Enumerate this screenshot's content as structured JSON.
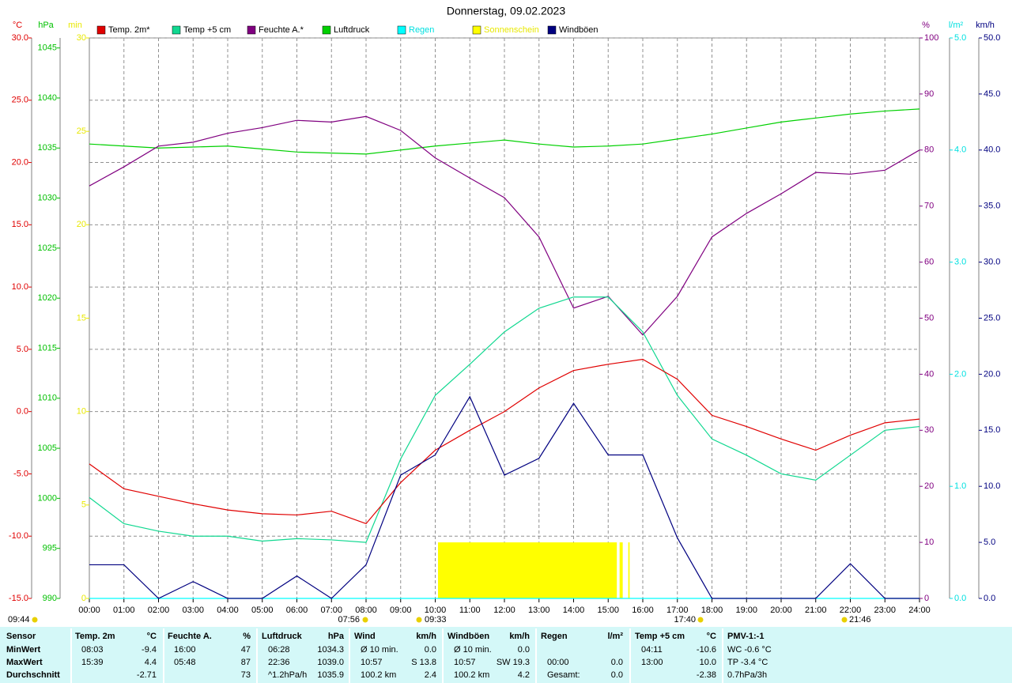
{
  "chart_data": {
    "type": "line",
    "title": "Donnerstag, 09.02.2023",
    "x": [
      0,
      1,
      2,
      3,
      4,
      5,
      6,
      7,
      8,
      9,
      10,
      11,
      12,
      13,
      14,
      15,
      16,
      17,
      18,
      19,
      20,
      21,
      22,
      23,
      24
    ],
    "xlim": [
      0,
      24
    ],
    "xticks": [
      {
        "value": 0,
        "label": "00:00"
      },
      {
        "value": 1,
        "label": "01:00"
      },
      {
        "value": 2,
        "label": "02:00"
      },
      {
        "value": 3,
        "label": "03:00"
      },
      {
        "value": 4,
        "label": "04:00"
      },
      {
        "value": 5,
        "label": "05:00"
      },
      {
        "value": 6,
        "label": "06:00"
      },
      {
        "value": 7,
        "label": "07:00"
      },
      {
        "value": 8,
        "label": "08:00"
      },
      {
        "value": 9,
        "label": "09:00"
      },
      {
        "value": 10,
        "label": "10:00"
      },
      {
        "value": 11,
        "label": "11:00"
      },
      {
        "value": 12,
        "label": "12:00"
      },
      {
        "value": 13,
        "label": "13:00"
      },
      {
        "value": 14,
        "label": "14:00"
      },
      {
        "value": 15,
        "label": "15:00"
      },
      {
        "value": 16,
        "label": "16:00"
      },
      {
        "value": 17,
        "label": "17:00"
      },
      {
        "value": 18,
        "label": "18:00"
      },
      {
        "value": 19,
        "label": "19:00"
      },
      {
        "value": 20,
        "label": "20:00"
      },
      {
        "value": 21,
        "label": "21:00"
      },
      {
        "value": 22,
        "label": "22:00"
      },
      {
        "value": 23,
        "label": "23:00"
      },
      {
        "value": 24,
        "label": "24:00"
      }
    ],
    "grid": true,
    "axes": [
      {
        "id": "c",
        "title": "°C",
        "color": "#e00000",
        "side": "left",
        "lim": [
          -15,
          30
        ],
        "grid": true,
        "ticks": [
          {
            "value": -15,
            "label": "-15.0"
          },
          {
            "value": -10,
            "label": "-10.0"
          },
          {
            "value": -5,
            "label": "-5.0"
          },
          {
            "value": 0,
            "label": "0.0"
          },
          {
            "value": 5,
            "label": "5.0"
          },
          {
            "value": 10,
            "label": "10.0"
          },
          {
            "value": 15,
            "label": "15.0"
          },
          {
            "value": 20,
            "label": "20.0"
          },
          {
            "value": 25,
            "label": "25.0"
          },
          {
            "value": 30,
            "label": "30.0"
          }
        ]
      },
      {
        "id": "hpa",
        "title": "hPa",
        "color": "#00c000",
        "side": "left",
        "lim": [
          990,
          1046
        ],
        "grid": false,
        "ticks": [
          990,
          995,
          1000,
          1005,
          1010,
          1015,
          1020,
          1025,
          1030,
          1035,
          1040,
          1045
        ]
      },
      {
        "id": "min",
        "title": "min",
        "color": "#e8e800",
        "side": "left",
        "lim": [
          0,
          30
        ],
        "grid": false,
        "ticks": [
          0,
          5,
          10,
          15,
          20,
          25,
          30
        ]
      },
      {
        "id": "pct",
        "title": "%",
        "color": "#800080",
        "side": "right",
        "lim": [
          0,
          100
        ],
        "grid": false,
        "ticks": [
          0,
          10,
          20,
          30,
          40,
          50,
          60,
          70,
          80,
          90,
          100
        ]
      },
      {
        "id": "rain",
        "title": "l/m²",
        "color": "#00e0e0",
        "side": "right",
        "lim": [
          0,
          5
        ],
        "grid": false,
        "ticks": [
          {
            "value": 0,
            "label": "0.0"
          },
          {
            "value": 1,
            "label": "1.0"
          },
          {
            "value": 2,
            "label": "2.0"
          },
          {
            "value": 3,
            "label": "3.0"
          },
          {
            "value": 4,
            "label": "4.0"
          },
          {
            "value": 5,
            "label": "5.0"
          }
        ]
      },
      {
        "id": "kmh",
        "title": "km/h",
        "color": "#000080",
        "side": "right",
        "lim": [
          0,
          50
        ],
        "grid": false,
        "ticks": [
          {
            "value": 0,
            "label": "0.0"
          },
          {
            "value": 5,
            "label": "5.0"
          },
          {
            "value": 10,
            "label": "10.0"
          },
          {
            "value": 15,
            "label": "15.0"
          },
          {
            "value": 20,
            "label": "20.0"
          },
          {
            "value": 25,
            "label": "25.0"
          },
          {
            "value": 30,
            "label": "30.0"
          },
          {
            "value": 35,
            "label": "35.0"
          },
          {
            "value": 40,
            "label": "40.0"
          },
          {
            "value": 45,
            "label": "45.0"
          },
          {
            "value": 50,
            "label": "50.0"
          }
        ]
      }
    ],
    "series": [
      {
        "name": "Temp. 2m*",
        "color": "#e00000",
        "axis": "c",
        "kind": "line",
        "values": [
          -4.2,
          -6.2,
          -6.8,
          -7.4,
          -7.9,
          -8.2,
          -8.3,
          -8.0,
          -9.0,
          -5.7,
          -3.1,
          -1.5,
          0.0,
          1.9,
          3.3,
          3.8,
          4.2,
          2.6,
          -0.3,
          -1.2,
          -2.2,
          -3.1,
          -1.9,
          -0.9,
          -0.6
        ]
      },
      {
        "name": "Temp +5 cm",
        "color": "#10d890",
        "axis": "c",
        "kind": "line",
        "values": [
          -6.9,
          -9.0,
          -9.6,
          -10.0,
          -10.0,
          -10.4,
          -10.2,
          -10.3,
          -10.5,
          -3.8,
          1.3,
          3.8,
          6.4,
          8.3,
          9.2,
          9.2,
          6.4,
          1.3,
          -2.2,
          -3.5,
          -5.0,
          -5.5,
          -3.5,
          -1.5,
          -1.2
        ]
      },
      {
        "name": "Feuchte A.*",
        "color": "#800080",
        "axis": "pct",
        "kind": "line",
        "values": [
          73.6,
          77,
          80.7,
          81.4,
          83,
          84,
          85.3,
          85,
          86,
          83.5,
          78.6,
          75,
          71.5,
          64.5,
          51.8,
          53.9,
          47,
          53.9,
          64.5,
          68.7,
          72.2,
          76,
          75.7,
          76.4,
          80
        ]
      },
      {
        "name": "Luftdruck",
        "color": "#00d000",
        "axis": "hpa",
        "kind": "line",
        "values": [
          1035.4,
          1035.2,
          1035,
          1035.1,
          1035.2,
          1034.9,
          1034.6,
          1034.5,
          1034.4,
          1034.8,
          1035.2,
          1035.5,
          1035.8,
          1035.4,
          1035.1,
          1035.2,
          1035.4,
          1035.9,
          1036.4,
          1037,
          1037.6,
          1038,
          1038.4,
          1038.7,
          1038.9
        ]
      },
      {
        "name": "Regen",
        "color": "#00ffff",
        "label_color": "#00e0e0",
        "axis": "rain",
        "kind": "line",
        "values": [
          0,
          0,
          0,
          0,
          0,
          0,
          0,
          0,
          0,
          0,
          0,
          0,
          0,
          0,
          0,
          0,
          0,
          0,
          0,
          0,
          0,
          0,
          0,
          0,
          0
        ]
      },
      {
        "name": "Sonnenschein",
        "color": "#ffff00",
        "label_color": "#e8e800",
        "axis": "min",
        "kind": "bar",
        "x": [
          10.08,
          15.33,
          15.58
        ],
        "x_end": [
          15.25,
          15.42,
          15.62
        ],
        "values": [
          3,
          3,
          3
        ]
      },
      {
        "name": "Windböen",
        "color": "#000080",
        "axis": "kmh",
        "kind": "line",
        "values": [
          3,
          3,
          0,
          1.5,
          0,
          0,
          2,
          0,
          3,
          11,
          12.8,
          18,
          11,
          12.5,
          17.4,
          12.8,
          12.8,
          5.4,
          0,
          0,
          0,
          0,
          3.1,
          0,
          0
        ]
      }
    ],
    "annotations": [
      "09:44",
      "07:56",
      "09:33",
      "17:40",
      "21:46"
    ]
  },
  "table": {
    "headers": [
      [
        "Sensor"
      ],
      [
        "Temp. 2m",
        "°C"
      ],
      [
        "Feuchte A.",
        "%"
      ],
      [
        "Luftdruck",
        "hPa"
      ],
      [
        "Wind",
        "km/h"
      ],
      [
        "Windböen",
        "km/h"
      ],
      [
        "Regen",
        "l/m²"
      ],
      [
        "Temp +5 cm",
        "°C"
      ],
      [
        "PMV-1:-1"
      ]
    ],
    "rows": [
      {
        "label": "MinWert",
        "cells": [
          [
            "08:03",
            "-9.4"
          ],
          [
            "16:00",
            "47"
          ],
          [
            "06:28",
            "1034.3"
          ],
          [
            "Ø 10 min.",
            "0.0"
          ],
          [
            "Ø 10 min.",
            "0.0"
          ],
          [
            null,
            null
          ],
          [
            "04:11",
            "-10.6"
          ],
          [
            "WC -0.6 °C"
          ]
        ]
      },
      {
        "label": "MaxWert",
        "cells": [
          [
            "15:39",
            "4.4"
          ],
          [
            "05:48",
            "87"
          ],
          [
            "22:36",
            "1039.0"
          ],
          [
            "10:57",
            "S 13.8"
          ],
          [
            "10:57",
            "SW 19.3"
          ],
          [
            "00:00",
            "0.0"
          ],
          [
            "13:00",
            "10.0"
          ],
          [
            "TP -3.4 °C"
          ]
        ]
      },
      {
        "label": "Durchschnitt",
        "cells": [
          [
            null,
            "-2.71"
          ],
          [
            null,
            "73"
          ],
          [
            "^1.2hPa/h",
            "1035.9"
          ],
          [
            "100.2 km",
            "2.4"
          ],
          [
            "100.2 km",
            "4.2"
          ],
          [
            "Gesamt:",
            "0.0"
          ],
          [
            null,
            "-2.38"
          ],
          [
            "0.7hPa/3h"
          ]
        ]
      }
    ]
  }
}
